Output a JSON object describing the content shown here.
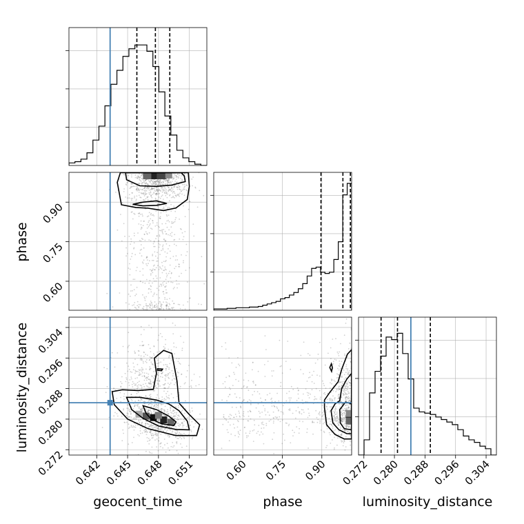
{
  "chart_data": {
    "type": "scatter",
    "subtype": "corner-plot",
    "parameters": [
      "geocent_time",
      "phase",
      "luminosity_distance"
    ],
    "axis_labels": {
      "geocent_time": "geocent_time",
      "phase": "phase",
      "luminosity_distance": "luminosity_distance"
    },
    "ranges": {
      "geocent_time": [
        0.6393,
        0.6527
      ],
      "phase": [
        0.49,
        1.013
      ],
      "luminosity_distance": [
        0.2706,
        0.3067
      ]
    },
    "ticks": {
      "geocent_time": [
        0.642,
        0.645,
        0.648,
        0.651
      ],
      "phase": [
        0.6,
        0.75,
        0.9
      ],
      "luminosity_distance": [
        0.272,
        0.28,
        0.288,
        0.296,
        0.304
      ]
    },
    "tick_labels": {
      "geocent_time": [
        "0.642",
        "0.645",
        "0.648",
        "0.651"
      ],
      "phase": [
        "0.60",
        "0.75",
        "0.90"
      ],
      "luminosity_distance": [
        "0.272",
        "0.280",
        "0.288",
        "0.296",
        "0.304"
      ]
    },
    "injection_values": {
      "geocent_time": 0.6433,
      "luminosity_distance": 0.2843
    },
    "quantiles": {
      "geocent_time": [
        0.6459,
        0.6477,
        0.6491
      ],
      "phase": [
        0.8967,
        0.9799,
        1.0082
      ],
      "luminosity_distance": [
        0.2765,
        0.2808,
        0.2894
      ]
    },
    "histograms": {
      "geocent_time": [
        0.02,
        0.03,
        0.05,
        0.1,
        0.2,
        0.31,
        0.47,
        0.64,
        0.75,
        0.86,
        0.92,
        0.95,
        0.95,
        0.9,
        0.78,
        0.58,
        0.39,
        0.24,
        0.12,
        0.06,
        0.03,
        0.01,
        0.0
      ],
      "phase": [
        0.01,
        0.01,
        0.01,
        0.015,
        0.015,
        0.02,
        0.02,
        0.02,
        0.025,
        0.025,
        0.03,
        0.04,
        0.05,
        0.06,
        0.07,
        0.09,
        0.1,
        0.12,
        0.14,
        0.17,
        0.21,
        0.27,
        0.33,
        0.34,
        0.3,
        0.29,
        0.3,
        0.4,
        0.54,
        0.91,
        1.0
      ],
      "luminosity_distance": [
        0.0,
        0.12,
        0.49,
        0.66,
        0.78,
        0.93,
        0.91,
        0.96,
        0.8,
        0.6,
        0.37,
        0.34,
        0.33,
        0.32,
        0.3,
        0.28,
        0.26,
        0.24,
        0.2,
        0.15,
        0.12,
        0.1,
        0.07,
        0.05,
        0.0
      ]
    },
    "contour_levels": [
      "39%",
      "86%",
      "99%"
    ],
    "grid": true
  }
}
